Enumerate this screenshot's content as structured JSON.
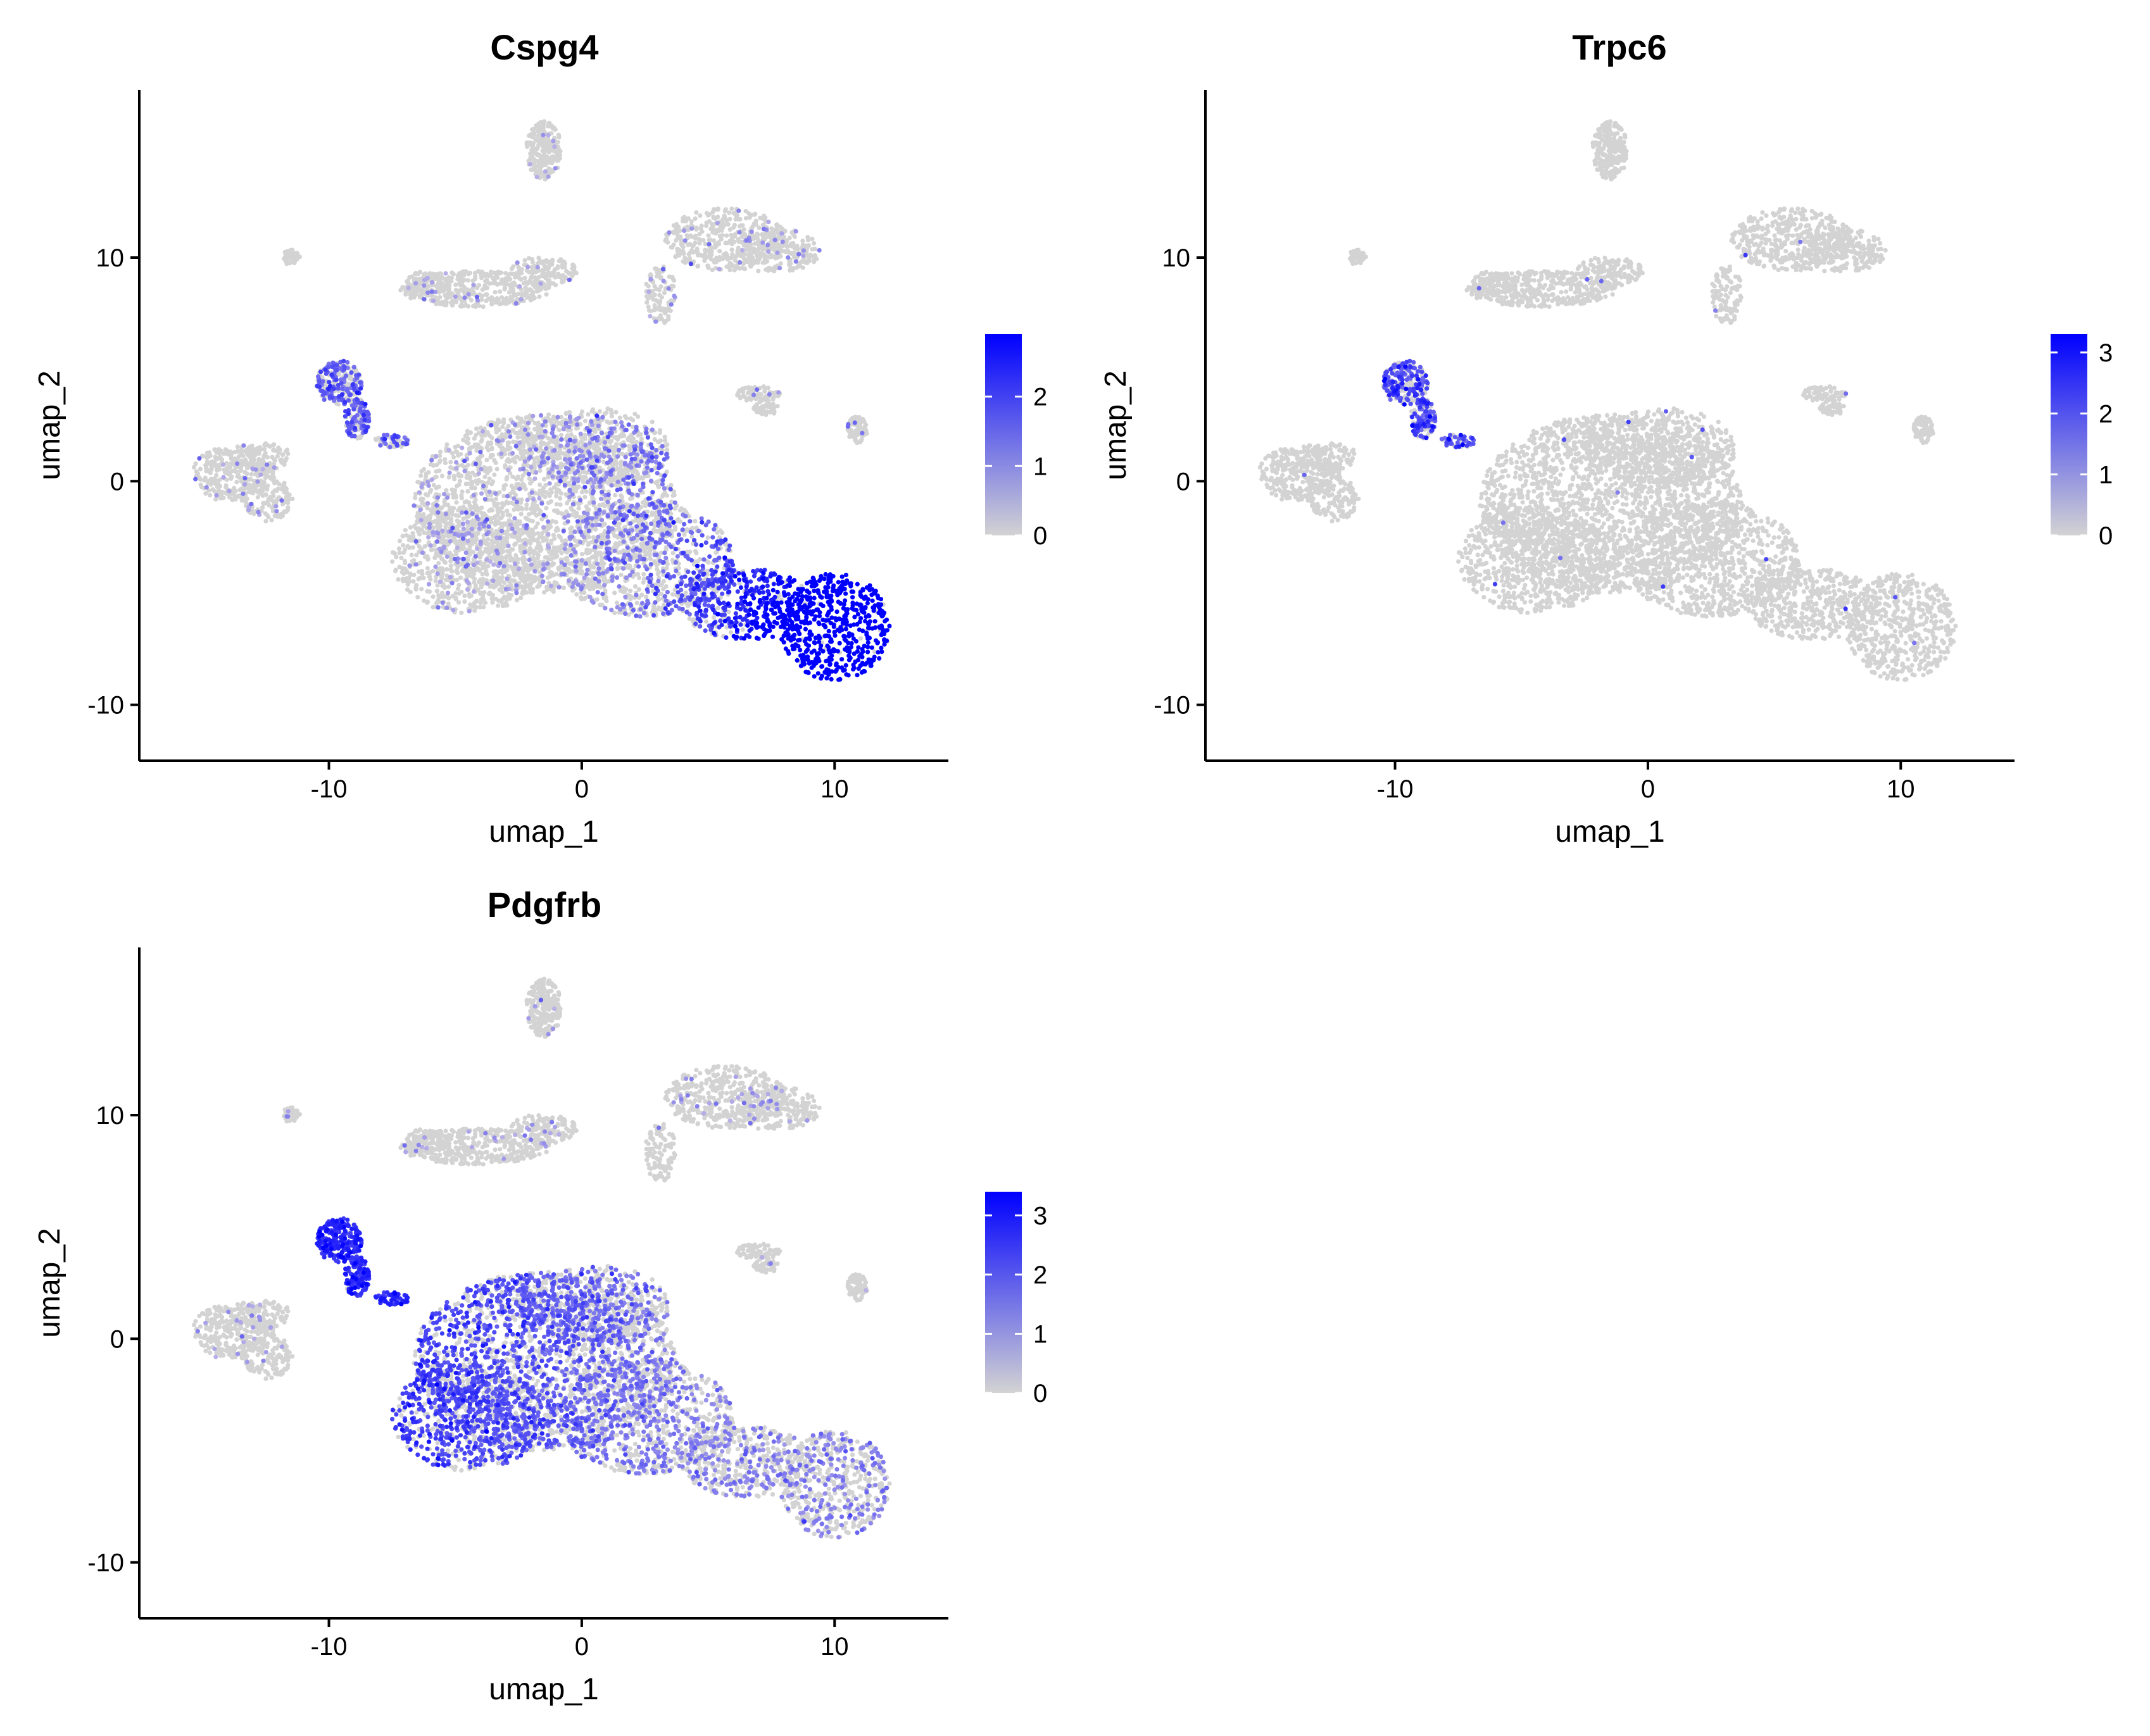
{
  "figure": {
    "colors": {
      "low": "#d3d3d3",
      "high": "#0000ff",
      "axis": "#000000",
      "background": "#ffffff"
    }
  },
  "chart_data": [
    {
      "type": "scatter",
      "title": "Cspg4",
      "xlabel": "umap_1",
      "ylabel": "umap_2",
      "xlim": [
        -17.5,
        14.5
      ],
      "ylim": [
        -12.5,
        17.5
      ],
      "xticks": [
        -10,
        0,
        10
      ],
      "yticks": [
        -10,
        0,
        10
      ],
      "grid": false,
      "legend": {
        "type": "colorbar",
        "position": "right",
        "min": 0,
        "max": 2.9,
        "ticks": [
          0,
          1,
          2
        ],
        "colors": [
          "#d3d3d3",
          "#0000ff"
        ]
      },
      "expression_profile": "high in lower-right lobe around (10,-7); moderate along main body; low elsewhere"
    },
    {
      "type": "scatter",
      "title": "Trpc6",
      "xlabel": "umap_1",
      "ylabel": "umap_2",
      "xlim": [
        -17.5,
        14.5
      ],
      "ylim": [
        -12.5,
        17.5
      ],
      "xticks": [
        -10,
        0,
        10
      ],
      "yticks": [
        -10,
        0,
        10
      ],
      "grid": false,
      "legend": {
        "type": "colorbar",
        "position": "right",
        "min": 0,
        "max": 3.3,
        "ticks": [
          0,
          1,
          2,
          3
        ],
        "colors": [
          "#d3d3d3",
          "#0000ff"
        ]
      },
      "expression_profile": "expressed mainly in small cluster near (-9.5,4.5); near zero elsewhere"
    },
    {
      "type": "scatter",
      "title": "Pdgfrb",
      "xlabel": "umap_1",
      "ylabel": "umap_2",
      "xlim": [
        -17.5,
        14.5
      ],
      "ylim": [
        -12.5,
        17.5
      ],
      "xticks": [
        -10,
        0,
        10
      ],
      "yticks": [
        -10,
        0,
        10
      ],
      "grid": false,
      "legend": {
        "type": "colorbar",
        "position": "right",
        "min": 0,
        "max": 3.4,
        "ticks": [
          0,
          1,
          2,
          3
        ],
        "colors": [
          "#d3d3d3",
          "#0000ff"
        ]
      },
      "expression_profile": "high in cluster near (-9.5,4.5) and left part of main body; moderate across main body"
    }
  ]
}
